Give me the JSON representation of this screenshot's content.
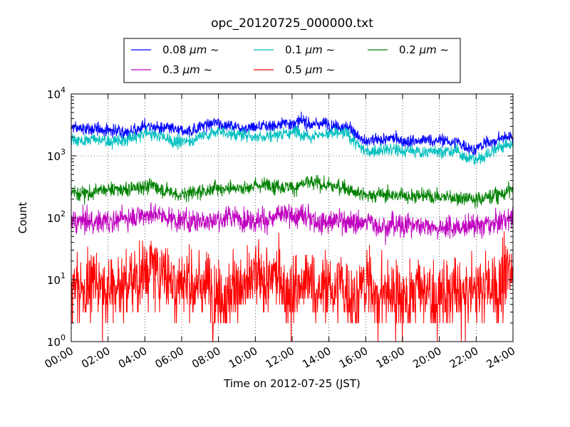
{
  "chart_data": {
    "type": "line",
    "title": "opc_20120725_000000.txt",
    "xlabel": "Time on 2012-07-25 (JST)",
    "ylabel": "Count",
    "x_ticks": [
      "00:00",
      "02:00",
      "04:00",
      "06:00",
      "08:00",
      "10:00",
      "12:00",
      "14:00",
      "16:00",
      "18:00",
      "20:00",
      "22:00",
      "24:00"
    ],
    "xlim_hours": [
      0,
      24
    ],
    "yscale": "log",
    "ylim": [
      1,
      10000
    ],
    "y_ticks": [
      {
        "base": "10",
        "exp": "0"
      },
      {
        "base": "10",
        "exp": "1"
      },
      {
        "base": "10",
        "exp": "2"
      },
      {
        "base": "10",
        "exp": "3"
      },
      {
        "base": "10",
        "exp": "4"
      }
    ],
    "grid": true,
    "legend_position": "top",
    "x": [
      0,
      1,
      2,
      3,
      4,
      5,
      6,
      7,
      8,
      9,
      10,
      11,
      12,
      13,
      14,
      15,
      16,
      17,
      18,
      19,
      20,
      21,
      22,
      23,
      24
    ],
    "series": [
      {
        "name": "0.08 μm ~",
        "label_size": "0.08",
        "label_unit": "μm",
        "label_suffix": "~",
        "color": "#0000ff",
        "noise": 0.05,
        "values": [
          2800,
          2700,
          2600,
          2500,
          3100,
          2700,
          2300,
          3000,
          3400,
          3000,
          3000,
          3200,
          3500,
          3300,
          3400,
          3100,
          1600,
          1800,
          1800,
          1700,
          1800,
          1600,
          1300,
          1800,
          2100
        ]
      },
      {
        "name": "0.1 μm ~",
        "label_size": "0.1",
        "label_unit": "μm",
        "label_suffix": "~",
        "color": "#00bfbf",
        "noise": 0.05,
        "values": [
          1850,
          1800,
          1750,
          1700,
          2300,
          2000,
          1600,
          2100,
          2500,
          2200,
          2100,
          2200,
          2500,
          2300,
          2300,
          2200,
          1150,
          1250,
          1200,
          1150,
          1250,
          1100,
          850,
          1300,
          1550
        ]
      },
      {
        "name": "0.2 μm ~",
        "label_size": "0.2",
        "label_unit": "μm",
        "label_suffix": "~",
        "color": "#008000",
        "noise": 0.06,
        "values": [
          250,
          260,
          270,
          280,
          340,
          300,
          240,
          270,
          310,
          330,
          330,
          340,
          340,
          350,
          330,
          300,
          240,
          240,
          230,
          240,
          220,
          220,
          210,
          230,
          290
        ]
      },
      {
        "name": "0.3 μm ~",
        "label_size": "0.3",
        "label_unit": "μm",
        "label_suffix": "~",
        "color": "#bf00bf",
        "noise": 0.09,
        "values": [
          80,
          85,
          90,
          100,
          125,
          110,
          90,
          95,
          100,
          100,
          100,
          100,
          100,
          95,
          95,
          90,
          80,
          80,
          80,
          75,
          75,
          70,
          70,
          80,
          105
        ]
      },
      {
        "name": "0.5 μm ~",
        "label_size": "0.5",
        "label_unit": "μm",
        "label_suffix": "~",
        "color": "#ff0000",
        "noise": 0.28,
        "values": [
          8,
          8,
          8,
          9,
          15,
          13,
          9,
          9,
          9,
          8,
          8,
          8,
          8,
          7,
          7,
          7,
          7,
          6,
          6,
          6,
          5,
          5,
          6,
          8,
          12
        ]
      }
    ]
  }
}
